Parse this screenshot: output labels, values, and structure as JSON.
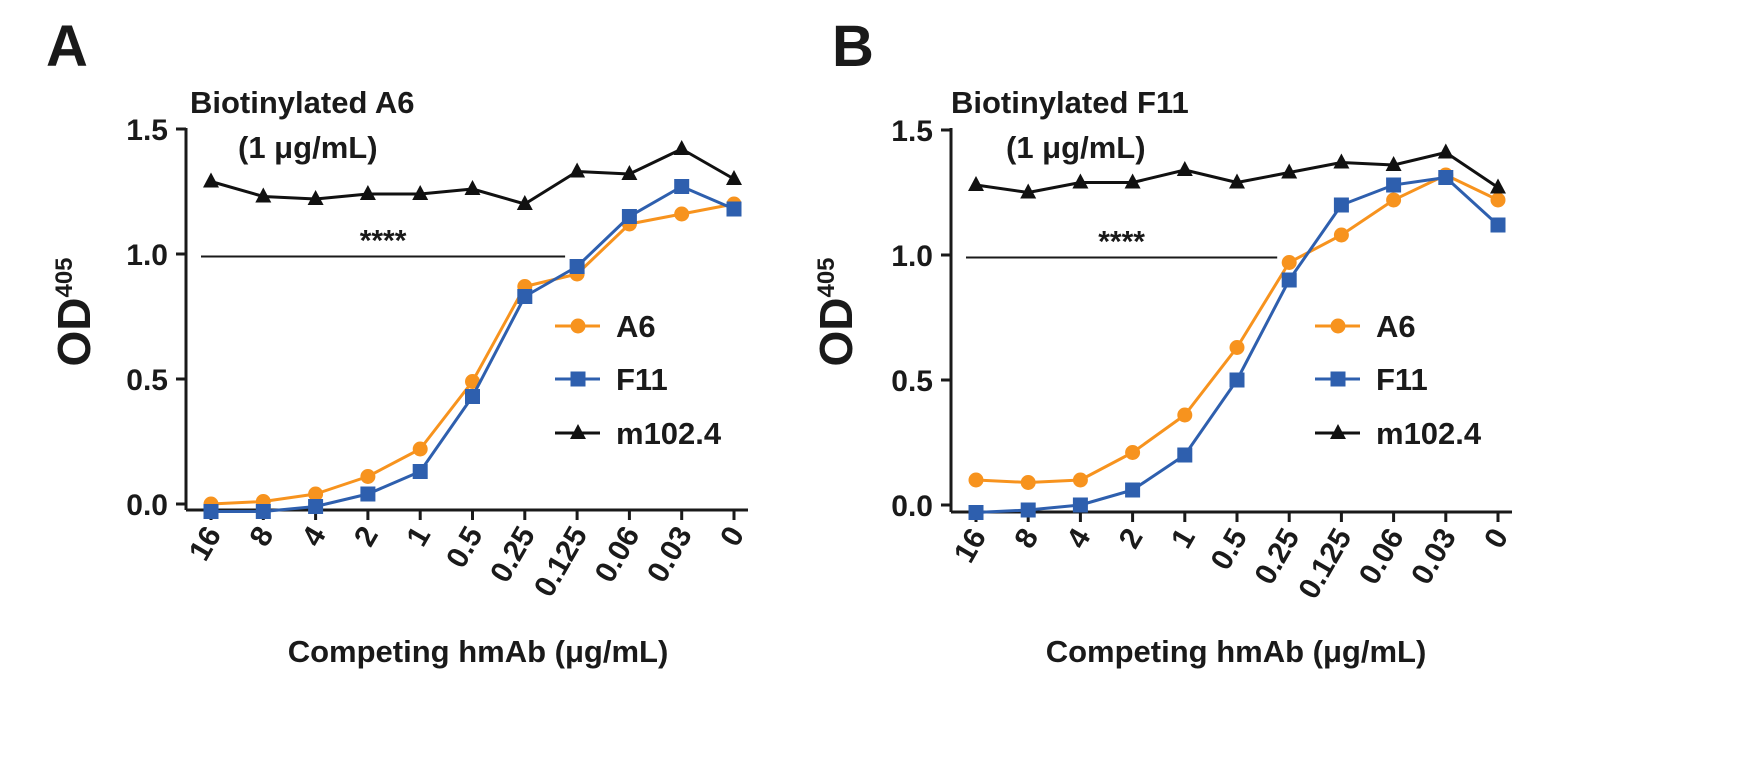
{
  "figure": {
    "x_categories": [
      "16",
      "8",
      "4",
      "2",
      "1",
      "0.5",
      "0.25",
      "0.125",
      "0.06",
      "0.03",
      "0"
    ]
  },
  "colors": {
    "A6": "#f7931e",
    "F11": "#2e5fae",
    "m102.4": "#111111",
    "axis": "#1a1a1a"
  },
  "chart_data": [
    {
      "type": "line",
      "panel": "A",
      "title": "Biotinylated A6",
      "subtitle": "(1 μg/mL)",
      "xlabel": "Competing hmAb (μg/mL)",
      "ylabel": "OD",
      "ylabel_sup": "405",
      "ylim": [
        0,
        1.5
      ],
      "yticks": [
        "0.0",
        "0.5",
        "1.0",
        "1.5"
      ],
      "categories": [
        "16",
        "8",
        "4",
        "2",
        "1",
        "0.5",
        "0.25",
        "0.125",
        "0.06",
        "0.03",
        "0"
      ],
      "significance": {
        "label": "****",
        "y": 0.99,
        "from": "16",
        "to": "0.125"
      },
      "series": [
        {
          "name": "A6",
          "marker": "circle",
          "values": [
            0.0,
            0.01,
            0.04,
            0.11,
            0.22,
            0.49,
            0.87,
            0.92,
            1.12,
            1.16,
            1.2
          ]
        },
        {
          "name": "F11",
          "marker": "square",
          "values": [
            -0.03,
            -0.03,
            -0.01,
            0.04,
            0.13,
            0.43,
            0.83,
            0.95,
            1.15,
            1.27,
            1.18
          ]
        },
        {
          "name": "m102.4",
          "marker": "triangle",
          "values": [
            1.29,
            1.23,
            1.22,
            1.24,
            1.24,
            1.26,
            1.2,
            1.33,
            1.32,
            1.42,
            1.3
          ]
        }
      ]
    },
    {
      "type": "line",
      "panel": "B",
      "title": "Biotinylated F11",
      "subtitle": "(1 μg/mL)",
      "xlabel": "Competing hmAb (μg/mL)",
      "ylabel": "OD",
      "ylabel_sup": "405",
      "ylim": [
        0,
        1.5
      ],
      "yticks": [
        "0.0",
        "0.5",
        "1.0",
        "1.5"
      ],
      "categories": [
        "16",
        "8",
        "4",
        "2",
        "1",
        "0.5",
        "0.25",
        "0.125",
        "0.06",
        "0.03",
        "0"
      ],
      "significance": {
        "label": "****",
        "y": 0.99,
        "from": "16",
        "to": "0.25"
      },
      "series": [
        {
          "name": "A6",
          "marker": "circle",
          "values": [
            0.1,
            0.09,
            0.1,
            0.21,
            0.36,
            0.63,
            0.97,
            1.08,
            1.22,
            1.32,
            1.22
          ]
        },
        {
          "name": "F11",
          "marker": "square",
          "values": [
            -0.03,
            -0.02,
            0.0,
            0.06,
            0.2,
            0.5,
            0.9,
            1.2,
            1.28,
            1.31,
            1.12
          ]
        },
        {
          "name": "m102.4",
          "marker": "triangle",
          "values": [
            1.28,
            1.25,
            1.29,
            1.29,
            1.34,
            1.29,
            1.33,
            1.37,
            1.36,
            1.41,
            1.27
          ]
        }
      ]
    }
  ]
}
